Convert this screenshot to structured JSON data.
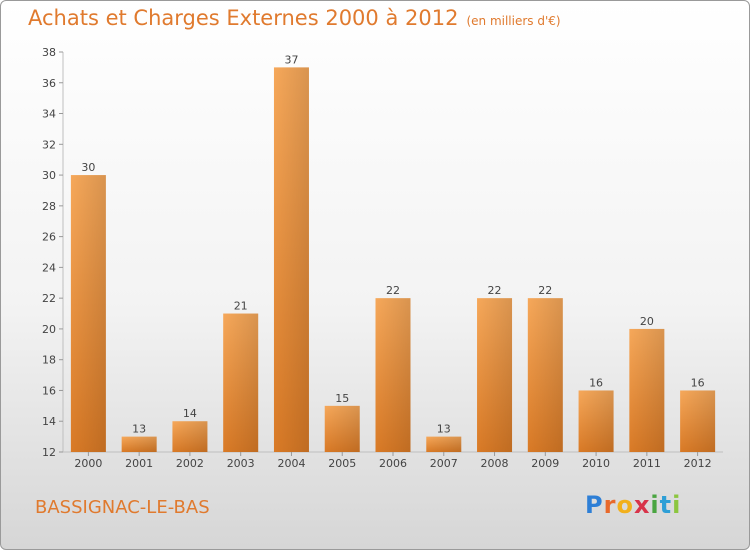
{
  "header": {
    "title": "Achats et Charges Externes 2000 à 2012",
    "subtitle": "(en milliers d'€)"
  },
  "footer": {
    "commune": "BASSIGNAC-LE-BAS",
    "logo_text": "Proxiti"
  },
  "colors": {
    "accent": "#e07a2e",
    "bar_light": "#f6a85a",
    "bar_dark": "#d97a26"
  },
  "chart_data": {
    "type": "bar",
    "categories": [
      "2000",
      "2001",
      "2002",
      "2003",
      "2004",
      "2005",
      "2006",
      "2007",
      "2008",
      "2009",
      "2010",
      "2011",
      "2012"
    ],
    "values": [
      30,
      13,
      14,
      21,
      37,
      15,
      22,
      13,
      22,
      22,
      16,
      20,
      16
    ],
    "title": "Achats et Charges Externes 2000 à 2012",
    "subtitle": "(en milliers d'€)",
    "ylim": [
      12,
      38
    ],
    "yticks": [
      12,
      14,
      16,
      18,
      20,
      22,
      24,
      26,
      28,
      30,
      32,
      34,
      36,
      38
    ],
    "grid": false,
    "data_labels": true
  }
}
